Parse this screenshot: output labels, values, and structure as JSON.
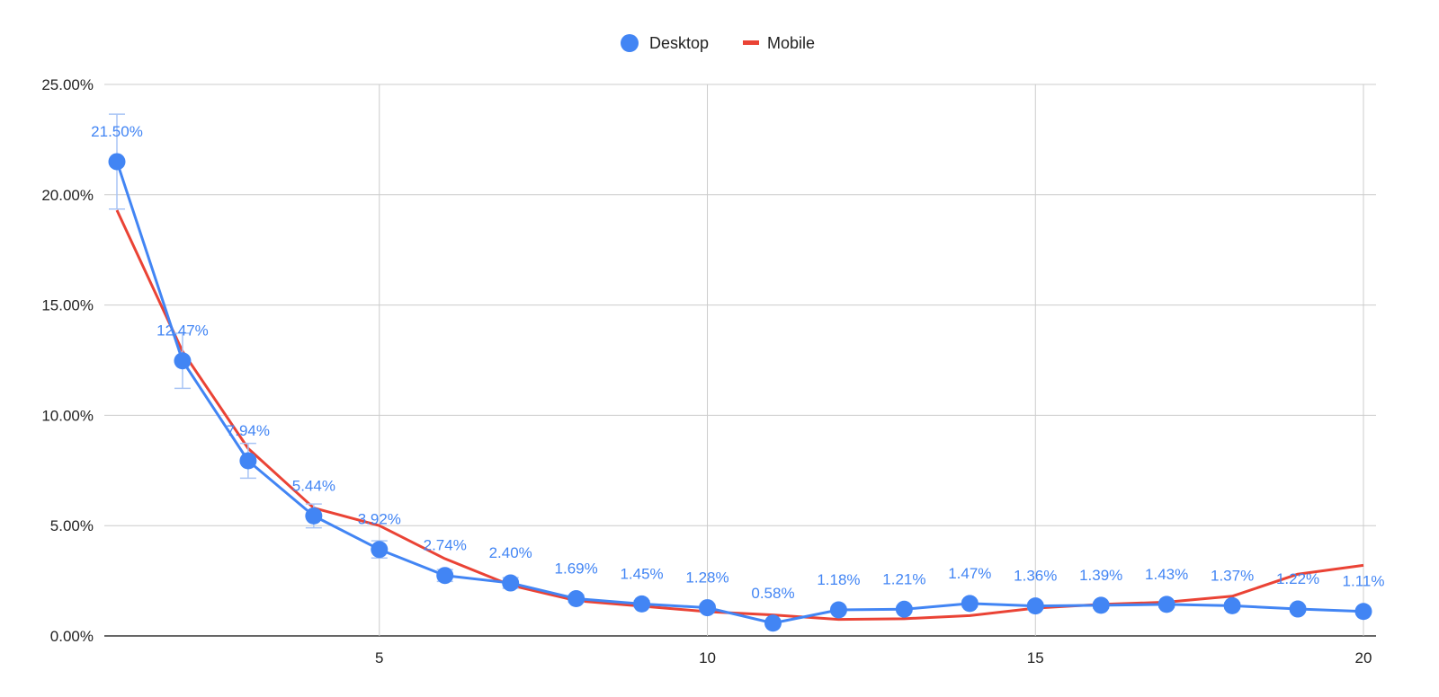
{
  "chart_data": {
    "type": "line",
    "title": "",
    "xlabel": "",
    "ylabel": "",
    "xlim": [
      1,
      20
    ],
    "ylim": [
      0,
      25
    ],
    "x_ticks": [
      "5",
      "10",
      "15",
      "20"
    ],
    "y_ticks": [
      "0.00%",
      "5.00%",
      "10.00%",
      "15.00%",
      "20.00%",
      "25.00%"
    ],
    "grid": true,
    "legend_position": "top-center",
    "x": [
      1,
      2,
      3,
      4,
      5,
      6,
      7,
      8,
      9,
      10,
      11,
      12,
      13,
      14,
      15,
      16,
      17,
      18,
      19,
      20
    ],
    "series": [
      {
        "name": "Desktop",
        "color": "#4285f4",
        "marker": "circle",
        "values": [
          21.5,
          12.47,
          7.94,
          5.44,
          3.92,
          2.74,
          2.4,
          1.69,
          1.45,
          1.28,
          0.58,
          1.18,
          1.21,
          1.47,
          1.36,
          1.39,
          1.43,
          1.37,
          1.22,
          1.11
        ],
        "labels": [
          "21.50%",
          "12.47%",
          "7.94%",
          "5.44%",
          "3.92%",
          "2.74%",
          "2.40%",
          "1.69%",
          "1.45%",
          "1.28%",
          "0.58%",
          "1.18%",
          "1.21%",
          "1.47%",
          "1.36%",
          "1.39%",
          "1.43%",
          "1.37%",
          "1.22%",
          "1.11%"
        ],
        "error_bars": [
          [
            19.35,
            23.65
          ],
          [
            11.22,
            13.72
          ],
          [
            7.15,
            8.73
          ],
          [
            4.9,
            5.98
          ],
          [
            3.53,
            4.31
          ],
          [
            2.47,
            3.01
          ],
          [
            2.16,
            2.64
          ],
          [
            1.52,
            1.86
          ],
          [
            1.31,
            1.6
          ],
          [
            1.15,
            1.41
          ],
          [
            0.52,
            0.64
          ],
          [
            1.06,
            1.3
          ],
          [
            1.09,
            1.33
          ],
          [
            1.32,
            1.62
          ],
          [
            1.22,
            1.5
          ],
          [
            1.25,
            1.53
          ],
          [
            1.29,
            1.57
          ],
          [
            1.23,
            1.51
          ],
          [
            1.1,
            1.34
          ],
          [
            1.0,
            1.22
          ]
        ]
      },
      {
        "name": "Mobile",
        "color": "#ea4335",
        "marker": "none",
        "values": [
          19.3,
          12.9,
          8.5,
          5.8,
          5.0,
          3.5,
          2.3,
          1.6,
          1.35,
          1.1,
          0.95,
          0.75,
          0.78,
          0.92,
          1.26,
          1.43,
          1.53,
          1.8,
          2.8,
          3.2
        ]
      }
    ]
  }
}
